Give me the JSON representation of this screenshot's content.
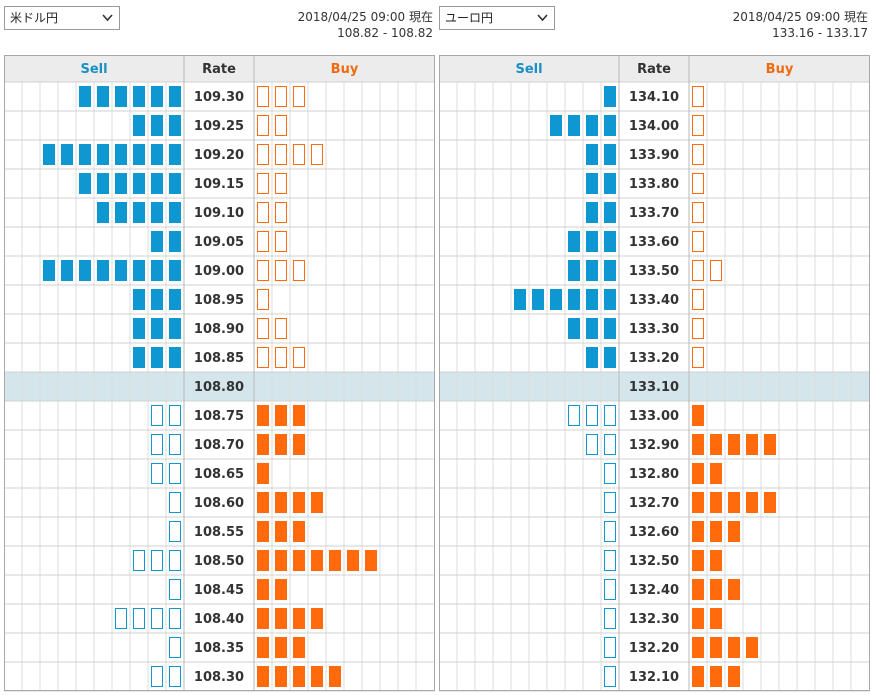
{
  "left": {
    "pair_select": {
      "value": "米ドル円"
    },
    "timestamp": "2018/04/25 09:00 現在",
    "price_range": "108.82 - 108.82"
  },
  "right": {
    "pair_select": {
      "value": "ユーロ円"
    },
    "timestamp": "2018/04/25 09:00 現在",
    "price_range": "133.16 - 133.17"
  },
  "headers": {
    "sell": "Sell",
    "rate": "Rate",
    "buy": "Buy"
  },
  "colors": {
    "sell_accent": "#1a8fc4",
    "buy_accent": "#f06a10",
    "sell_fill": "#0f97d2",
    "buy_fill": "#ff6a0c",
    "current_row_bg": "#d4e6ec",
    "header_bg": "#ececec",
    "grid_line": "#d0d0d0"
  },
  "chart_data": [
    {
      "type": "table",
      "pair": "米ドル円",
      "current_rate": "108.80",
      "rows": [
        {
          "rate": "109.30",
          "sell": 6,
          "buy": 3,
          "sell_filled": true,
          "buy_filled": false
        },
        {
          "rate": "109.25",
          "sell": 3,
          "buy": 2,
          "sell_filled": true,
          "buy_filled": false
        },
        {
          "rate": "109.20",
          "sell": 8,
          "buy": 4,
          "sell_filled": true,
          "buy_filled": false
        },
        {
          "rate": "109.15",
          "sell": 6,
          "buy": 2,
          "sell_filled": true,
          "buy_filled": false
        },
        {
          "rate": "109.10",
          "sell": 5,
          "buy": 2,
          "sell_filled": true,
          "buy_filled": false
        },
        {
          "rate": "109.05",
          "sell": 2,
          "buy": 2,
          "sell_filled": true,
          "buy_filled": false
        },
        {
          "rate": "109.00",
          "sell": 8,
          "buy": 3,
          "sell_filled": true,
          "buy_filled": false
        },
        {
          "rate": "108.95",
          "sell": 3,
          "buy": 1,
          "sell_filled": true,
          "buy_filled": false
        },
        {
          "rate": "108.90",
          "sell": 3,
          "buy": 2,
          "sell_filled": true,
          "buy_filled": false
        },
        {
          "rate": "108.85",
          "sell": 3,
          "buy": 3,
          "sell_filled": true,
          "buy_filled": false
        },
        {
          "rate": "108.80",
          "sell": 0,
          "buy": 0,
          "current": true
        },
        {
          "rate": "108.75",
          "sell": 2,
          "buy": 3,
          "sell_filled": false,
          "buy_filled": true
        },
        {
          "rate": "108.70",
          "sell": 2,
          "buy": 3,
          "sell_filled": false,
          "buy_filled": true
        },
        {
          "rate": "108.65",
          "sell": 2,
          "buy": 1,
          "sell_filled": false,
          "buy_filled": true
        },
        {
          "rate": "108.60",
          "sell": 1,
          "buy": 4,
          "sell_filled": false,
          "buy_filled": true
        },
        {
          "rate": "108.55",
          "sell": 1,
          "buy": 3,
          "sell_filled": false,
          "buy_filled": true
        },
        {
          "rate": "108.50",
          "sell": 3,
          "buy": 7,
          "sell_filled": false,
          "buy_filled": true
        },
        {
          "rate": "108.45",
          "sell": 1,
          "buy": 2,
          "sell_filled": false,
          "buy_filled": true
        },
        {
          "rate": "108.40",
          "sell": 4,
          "buy": 4,
          "sell_filled": false,
          "buy_filled": true
        },
        {
          "rate": "108.35",
          "sell": 1,
          "buy": 3,
          "sell_filled": false,
          "buy_filled": true
        },
        {
          "rate": "108.30",
          "sell": 2,
          "buy": 5,
          "sell_filled": false,
          "buy_filled": true
        }
      ]
    },
    {
      "type": "table",
      "pair": "ユーロ円",
      "current_rate": "133.10",
      "rows": [
        {
          "rate": "134.10",
          "sell": 1,
          "buy": 1,
          "sell_filled": true,
          "buy_filled": false
        },
        {
          "rate": "134.00",
          "sell": 4,
          "buy": 1,
          "sell_filled": true,
          "buy_filled": false
        },
        {
          "rate": "133.90",
          "sell": 2,
          "buy": 1,
          "sell_filled": true,
          "buy_filled": false
        },
        {
          "rate": "133.80",
          "sell": 2,
          "buy": 1,
          "sell_filled": true,
          "buy_filled": false
        },
        {
          "rate": "133.70",
          "sell": 2,
          "buy": 1,
          "sell_filled": true,
          "buy_filled": false
        },
        {
          "rate": "133.60",
          "sell": 3,
          "buy": 1,
          "sell_filled": true,
          "buy_filled": false
        },
        {
          "rate": "133.50",
          "sell": 3,
          "buy": 2,
          "sell_filled": true,
          "buy_filled": false
        },
        {
          "rate": "133.40",
          "sell": 6,
          "buy": 1,
          "sell_filled": true,
          "buy_filled": false
        },
        {
          "rate": "133.30",
          "sell": 3,
          "buy": 1,
          "sell_filled": true,
          "buy_filled": false
        },
        {
          "rate": "133.20",
          "sell": 2,
          "buy": 1,
          "sell_filled": true,
          "buy_filled": false
        },
        {
          "rate": "133.10",
          "sell": 0,
          "buy": 0,
          "current": true
        },
        {
          "rate": "133.00",
          "sell": 3,
          "buy": 1,
          "sell_filled": false,
          "buy_filled": true
        },
        {
          "rate": "132.90",
          "sell": 2,
          "buy": 5,
          "sell_filled": false,
          "buy_filled": true
        },
        {
          "rate": "132.80",
          "sell": 1,
          "buy": 2,
          "sell_filled": false,
          "buy_filled": true
        },
        {
          "rate": "132.70",
          "sell": 1,
          "buy": 5,
          "sell_filled": false,
          "buy_filled": true
        },
        {
          "rate": "132.60",
          "sell": 1,
          "buy": 3,
          "sell_filled": false,
          "buy_filled": true
        },
        {
          "rate": "132.50",
          "sell": 1,
          "buy": 2,
          "sell_filled": false,
          "buy_filled": true
        },
        {
          "rate": "132.40",
          "sell": 1,
          "buy": 3,
          "sell_filled": false,
          "buy_filled": true
        },
        {
          "rate": "132.30",
          "sell": 1,
          "buy": 2,
          "sell_filled": false,
          "buy_filled": true
        },
        {
          "rate": "132.20",
          "sell": 1,
          "buy": 4,
          "sell_filled": false,
          "buy_filled": true
        },
        {
          "rate": "132.10",
          "sell": 1,
          "buy": 3,
          "sell_filled": false,
          "buy_filled": true
        }
      ]
    }
  ]
}
